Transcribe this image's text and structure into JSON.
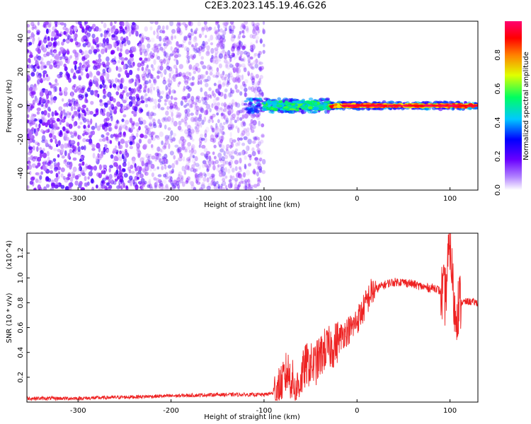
{
  "title": "C2E3.2023.145.19.46.G26",
  "chart_data": [
    {
      "type": "heatmap",
      "title": "C2E3.2023.145.19.46.G26",
      "xlabel": "Height of straight line (km)",
      "ylabel": "Frequency (Hz)",
      "xlim": [
        -355,
        130
      ],
      "ylim": [
        -50,
        50
      ],
      "xticks": [
        -300,
        -200,
        -100,
        0,
        100
      ],
      "xtick_labels": [
        "-300",
        "-200",
        "-100",
        "0",
        "100"
      ],
      "yticks": [
        40,
        20,
        0,
        -20,
        -40
      ],
      "ytick_labels": [
        "40",
        "20",
        "0",
        "-20",
        "-40"
      ],
      "colorbar": {
        "label": "Normalized spectral amplitude",
        "range": [
          0,
          1
        ],
        "ticks": [
          0.0,
          0.2,
          0.4,
          0.6,
          0.8
        ],
        "tick_labels": [
          "0.0",
          "0.2",
          "0.4",
          "0.6",
          "0.8"
        ],
        "colormap": [
          "#ffffff",
          "#7a00ff",
          "#0000ff",
          "#00c8ff",
          "#00ff40",
          "#ffff00",
          "#ff8000",
          "#ff0000",
          "#ff0080"
        ]
      },
      "regions": [
        {
          "name": "noise",
          "x_range": [
            -355,
            -100
          ],
          "freq_range": [
            -50,
            50
          ],
          "amplitude": 0.1
        },
        {
          "name": "signal band",
          "x_range": [
            -100,
            130
          ],
          "center_freq": 0,
          "amplitude": 0.85
        }
      ]
    },
    {
      "type": "line",
      "xlabel": "Height of straight line (km)",
      "ylabel": "SNR (10 * v/v)",
      "y_multiplier": "(x10^4)",
      "xlim": [
        -355,
        130
      ],
      "ylim": [
        0,
        1.36
      ],
      "xticks": [
        -300,
        -200,
        -100,
        0,
        100
      ],
      "xtick_labels": [
        "-300",
        "-200",
        "-100",
        "0",
        "100"
      ],
      "yticks": [
        0.2,
        0.4,
        0.6,
        0.8,
        1.0,
        1.2
      ],
      "ytick_labels": [
        "0.2",
        "0.4",
        "0.6",
        "0.8",
        "1.0",
        "1.2"
      ],
      "color": "#ee2222",
      "x": [
        -355,
        -300,
        -250,
        -200,
        -150,
        -120,
        -100,
        -85,
        -75,
        -65,
        -55,
        -45,
        -35,
        -25,
        -15,
        -5,
        5,
        15,
        25,
        35,
        45,
        55,
        65,
        75,
        85,
        95,
        100,
        105,
        110,
        120,
        130
      ],
      "y": [
        0.03,
        0.03,
        0.04,
        0.05,
        0.06,
        0.06,
        0.06,
        0.08,
        0.25,
        0.1,
        0.3,
        0.3,
        0.42,
        0.45,
        0.55,
        0.6,
        0.72,
        0.88,
        0.93,
        0.96,
        0.97,
        0.96,
        0.94,
        0.92,
        0.92,
        0.85,
        1.3,
        0.7,
        0.8,
        0.81,
        0.8
      ]
    }
  ]
}
